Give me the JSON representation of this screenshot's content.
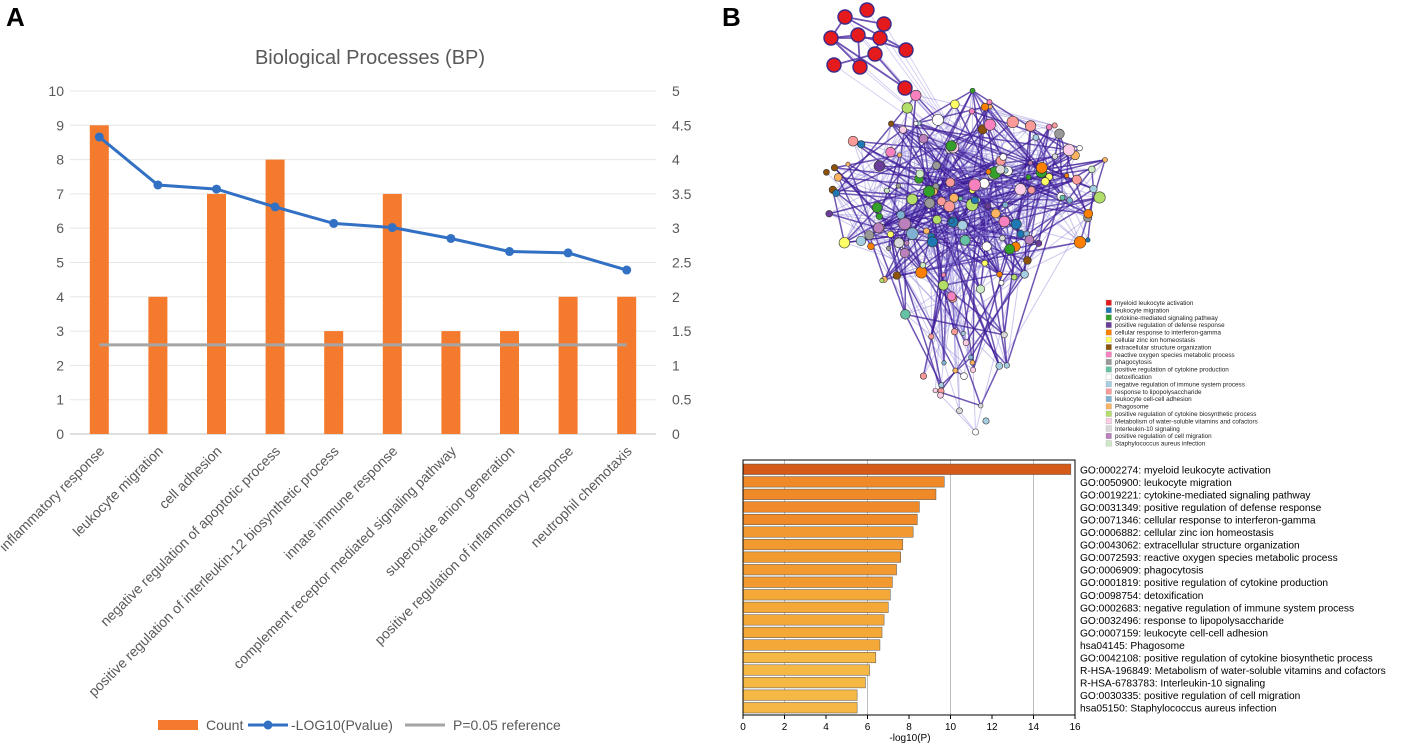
{
  "panels": {
    "a": "A",
    "b": "B"
  },
  "chart_data": [
    {
      "type": "bar",
      "title": "Biological Processes (BP)",
      "categories": [
        "inflammatory response",
        "leukocyte migration",
        "cell adhesion",
        "negative regulation of apoptotic process",
        "positive regulation of interleukin-12 biosynthetic process",
        "innate immune response",
        "complement receptor mediated signaling pathway",
        "superoxide anion generation",
        "positive regulation of inflammatory response",
        "neutrophil chemotaxis"
      ],
      "series": [
        {
          "name": "Count",
          "kind": "bar",
          "axis": "left",
          "color": "#F47A2E",
          "values": [
            9,
            4,
            7,
            8,
            3,
            7,
            3,
            3,
            4,
            4
          ]
        },
        {
          "name": "-LOG10(Pvalue)",
          "kind": "line",
          "axis": "right",
          "color": "#3270C4",
          "values": [
            4.33,
            3.63,
            3.57,
            3.31,
            3.07,
            3.01,
            2.85,
            2.66,
            2.64,
            2.39
          ]
        },
        {
          "name": "P=0.05 reference",
          "kind": "line",
          "axis": "right",
          "color": "#A5A5A5",
          "values": [
            1.3,
            1.3,
            1.3,
            1.3,
            1.3,
            1.3,
            1.3,
            1.3,
            1.3,
            1.3
          ]
        }
      ],
      "ylim": [
        0,
        10
      ],
      "y2lim": [
        0,
        5
      ],
      "yticks": [
        "0",
        "1",
        "2",
        "3",
        "4",
        "5",
        "6",
        "7",
        "8",
        "9",
        "10"
      ],
      "y2ticks": [
        "0",
        "0.5",
        "1",
        "1.5",
        "2",
        "2.5",
        "3",
        "3.5",
        "4",
        "4.5",
        "5"
      ],
      "legend": [
        "Count",
        "-LOG10(Pvalue)",
        "P=0.05 reference"
      ],
      "grid": true
    },
    {
      "type": "bar",
      "orientation": "horizontal",
      "xlabel": "-log10(P)",
      "xlim": [
        0,
        16
      ],
      "xticks": [
        "0",
        "2",
        "4",
        "6",
        "8",
        "10",
        "12",
        "14",
        "16"
      ],
      "categories": [
        "GO:0002274: myeloid leukocyte activation",
        "GO:0050900: leukocyte migration",
        "GO:0019221: cytokine-mediated signaling pathway",
        "GO:0031349: positive regulation of defense response",
        "GO:0071346: cellular response to interferon-gamma",
        "GO:0006882: cellular zinc ion homeostasis",
        "GO:0043062: extracellular structure organization",
        "GO:0072593: reactive oxygen species metabolic process",
        "GO:0006909: phagocytosis",
        "GO:0001819: positive regulation of cytokine production",
        "GO:0098754: detoxification",
        "GO:0002683: negative regulation of immune system process",
        "GO:0032496: response to lipopolysaccharide",
        "GO:0007159: leukocyte cell-cell adhesion",
        "hsa04145: Phagosome",
        "GO:0042108: positive regulation of cytokine biosynthetic process",
        "R-HSA-196849: Metabolism of water-soluble vitamins and cofactors",
        "R-HSA-6783783: Interleukin-10 signaling",
        "GO:0030335: positive regulation of cell migration",
        "hsa05150: Staphylococcus aureus infection"
      ],
      "values": [
        15.8,
        9.7,
        9.3,
        8.5,
        8.4,
        8.2,
        7.7,
        7.6,
        7.4,
        7.2,
        7.1,
        7.0,
        6.8,
        6.7,
        6.6,
        6.4,
        6.1,
        5.9,
        5.5,
        5.5
      ]
    }
  ],
  "network": {
    "legend": [
      {
        "label": "myeloid leukocyte activation",
        "color": "#E41A1C"
      },
      {
        "label": "leukocyte migration",
        "color": "#1F78B4"
      },
      {
        "label": "cytokine-mediated signaling pathway",
        "color": "#33A02C"
      },
      {
        "label": "positive regulation of defense response",
        "color": "#6A3D9A"
      },
      {
        "label": "cellular response to interferon-gamma",
        "color": "#FF7F00"
      },
      {
        "label": "cellular zinc ion homeostasis",
        "color": "#FFFF66"
      },
      {
        "label": "extracellular structure organization",
        "color": "#8C510A"
      },
      {
        "label": "reactive oxygen species metabolic process",
        "color": "#F781BF"
      },
      {
        "label": "phagocytosis",
        "color": "#999999"
      },
      {
        "label": "positive regulation of cytokine production",
        "color": "#66C2A5"
      },
      {
        "label": "detoxification",
        "color": "#FFFFFF"
      },
      {
        "label": "negative regulation of immune system process",
        "color": "#A6CEE3"
      },
      {
        "label": "response to lipopolysaccharide",
        "color": "#FB9A99"
      },
      {
        "label": "leukocyte cell-cell adhesion",
        "color": "#80B1D3"
      },
      {
        "label": "Phagosome",
        "color": "#FDB462"
      },
      {
        "label": "positive regulation of cytokine biosynthetic process",
        "color": "#B3DE69"
      },
      {
        "label": "Metabolism of water-soluble vitamins and cofactors",
        "color": "#FCCDE5"
      },
      {
        "label": "Interleukin-10 signaling",
        "color": "#D9D9D9"
      },
      {
        "label": "positive regulation of cell migration",
        "color": "#BC80BD"
      },
      {
        "label": "Staphylococcus aureus infection",
        "color": "#CCEBC5"
      }
    ]
  }
}
